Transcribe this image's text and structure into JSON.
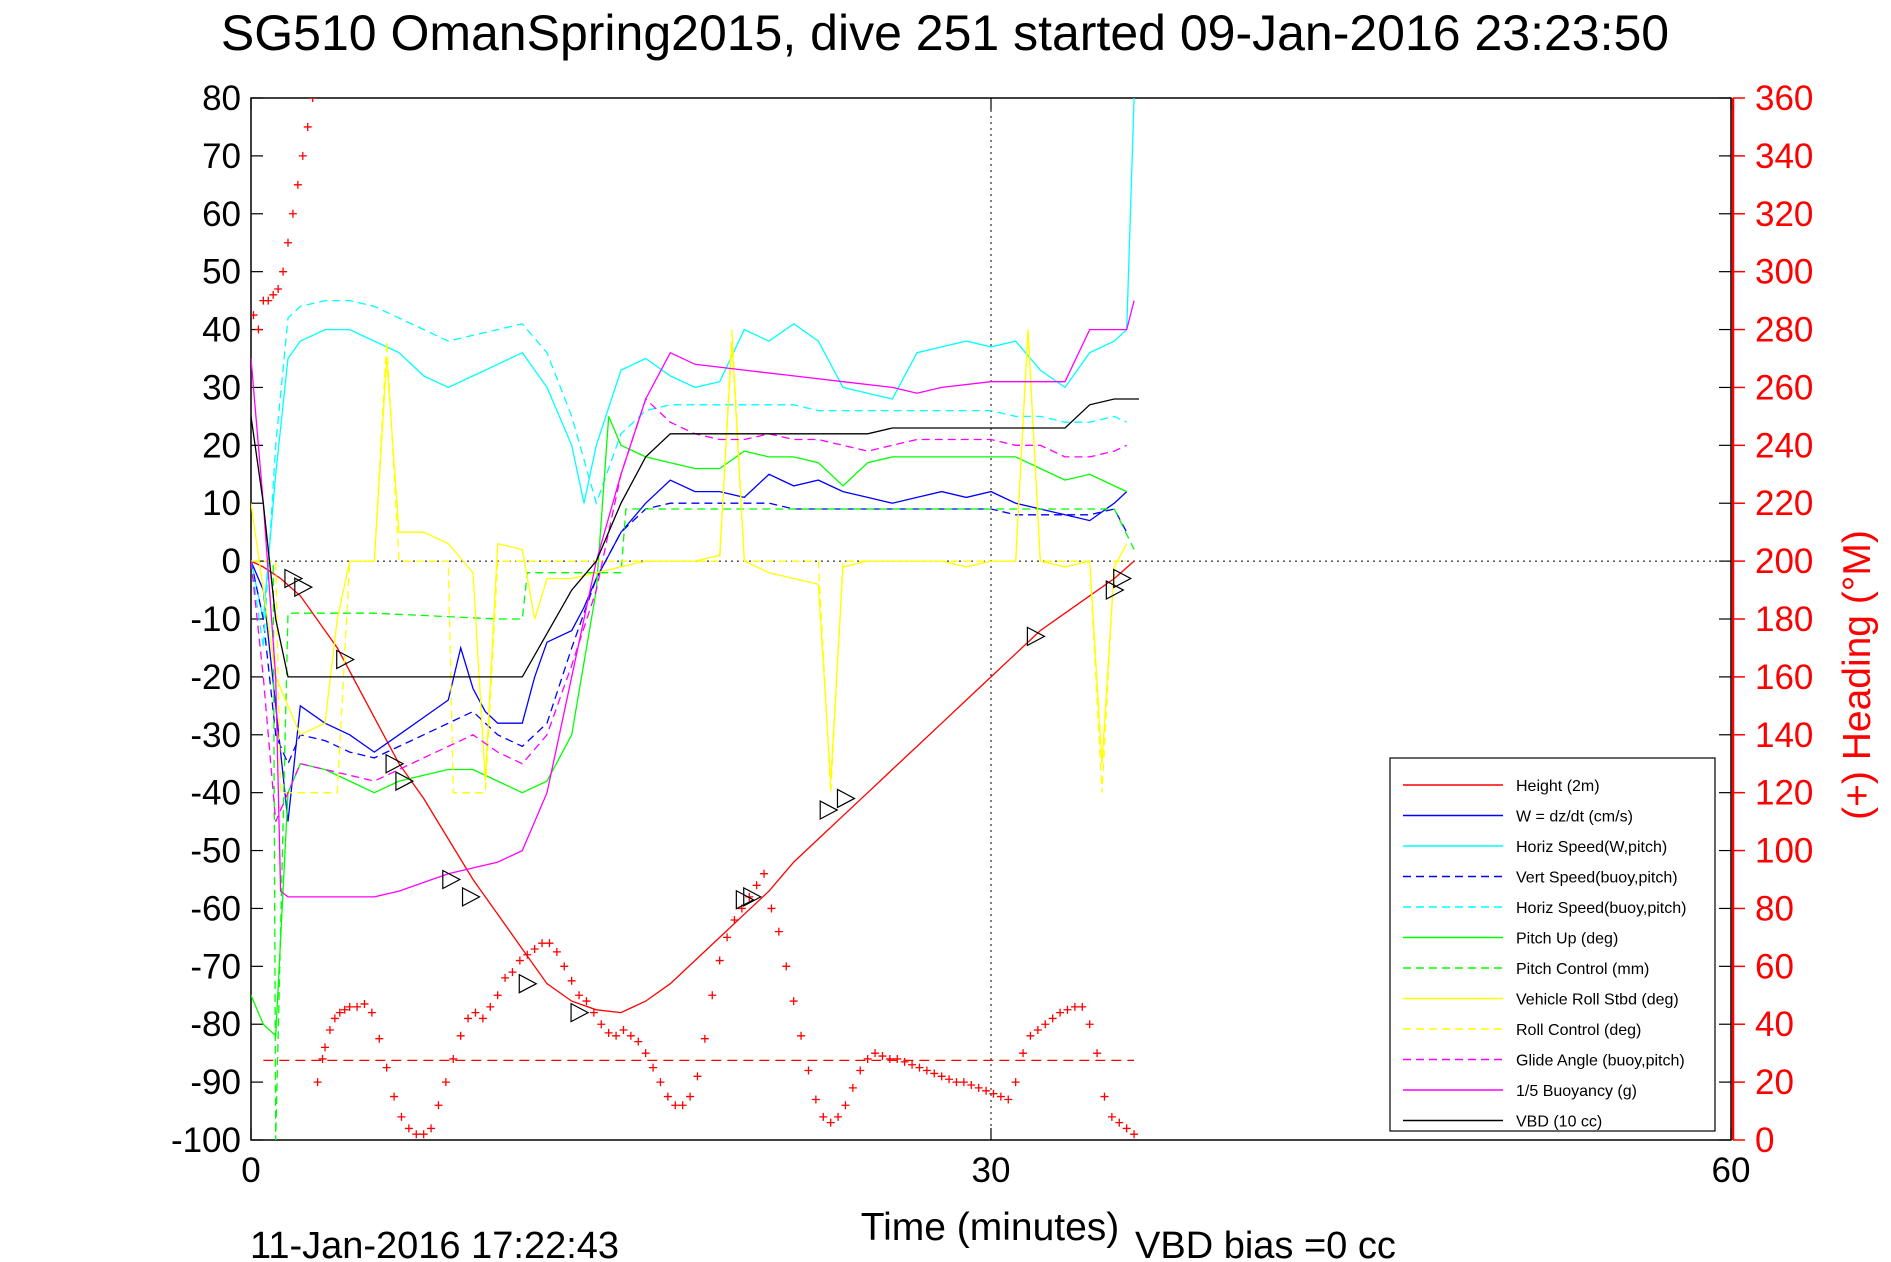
{
  "chart_data": {
    "type": "line",
    "title": "SG510 OmanSpring2015, dive 251 started 09-Jan-2016 23:23:50",
    "xlabel": "Time (minutes)",
    "ylabel": "",
    "y2label": "(+) Heading (°M)",
    "xlim": [
      0,
      60
    ],
    "ylim": [
      -100,
      80
    ],
    "y2lim": [
      0,
      360
    ],
    "xticks": [
      0,
      30,
      60
    ],
    "yticks": [
      80,
      70,
      60,
      50,
      40,
      30,
      20,
      10,
      0,
      -10,
      -20,
      -30,
      -40,
      -50,
      -60,
      -70,
      -80,
      -90,
      -100
    ],
    "y2ticks": [
      360,
      340,
      320,
      300,
      280,
      260,
      240,
      220,
      200,
      180,
      160,
      140,
      120,
      100,
      80,
      60,
      40,
      20,
      0
    ],
    "grid": "dotted at x=30 and y=0",
    "legend_position": "bottom-right",
    "footer_date": "11-Jan-2016 17:22:43",
    "footer_note": "VBD bias =0 cc",
    "series": [
      {
        "name": "Height (2m)",
        "color": "#ff0000",
        "dash": "solid",
        "x": [
          0,
          0.5,
          1.2,
          2,
          3.5,
          5,
          6,
          7,
          8,
          9,
          10,
          11,
          12,
          13,
          14,
          15,
          16,
          17,
          18,
          19,
          20,
          21,
          22,
          23,
          24,
          25,
          26,
          27,
          28,
          29,
          30,
          31,
          32,
          33,
          34,
          35,
          35.8
        ],
        "y": [
          0,
          -1,
          -3,
          -6,
          -15,
          -27,
          -35,
          -41,
          -48,
          -55,
          -61,
          -67,
          -73,
          -76,
          -77.5,
          -78,
          -76,
          -73,
          -69,
          -65,
          -61,
          -57,
          -52,
          -48,
          -44,
          -40,
          -36,
          -32,
          -28,
          -24,
          -20,
          -16,
          -12,
          -9,
          -6,
          -3,
          0
        ]
      },
      {
        "name": "W = dz/dt (cm/s)",
        "color": "#0000ff",
        "dash": "solid",
        "x": [
          0,
          0.5,
          1,
          1.5,
          2,
          3,
          4,
          5,
          6,
          7,
          8,
          8.5,
          9,
          9.5,
          10,
          11,
          11.5,
          12,
          13,
          13.5,
          14,
          15,
          16,
          17,
          18,
          19,
          20,
          21,
          22,
          23,
          24,
          25,
          26,
          27,
          28,
          29,
          30,
          31,
          32,
          33,
          34,
          35,
          35.5
        ],
        "y": [
          0,
          -5,
          -25,
          -45,
          -25,
          -28,
          -30,
          -33,
          -30,
          -27,
          -24,
          -15,
          -22,
          -26,
          -28,
          -28,
          -20,
          -14,
          -12,
          -8,
          -3,
          5,
          10,
          14,
          12,
          12,
          11,
          15,
          13,
          14,
          12,
          11,
          10,
          11,
          12,
          11,
          12,
          10,
          9,
          8,
          7,
          10,
          12
        ]
      },
      {
        "name": "Horiz Speed(W,pitch)",
        "color": "#00ffff",
        "dash": "solid",
        "x": [
          0,
          0.5,
          1,
          1.5,
          2,
          3,
          4,
          5,
          6,
          7,
          8,
          9,
          10,
          11,
          12,
          13,
          13.5,
          14,
          15,
          16,
          17,
          18,
          19,
          20,
          21,
          22,
          23,
          24,
          25,
          26,
          27,
          28,
          29,
          30,
          31,
          32,
          33,
          34,
          35,
          35.5,
          35.8
        ],
        "y": [
          0,
          -10,
          15,
          35,
          38,
          40,
          40,
          38,
          36,
          32,
          30,
          32,
          34,
          36,
          30,
          20,
          10,
          20,
          33,
          35,
          32,
          30,
          31,
          40,
          38,
          41,
          38,
          30,
          29,
          28,
          36,
          37,
          38,
          37,
          38,
          33,
          30,
          36,
          38,
          40,
          80
        ]
      },
      {
        "name": "Vert Speed(buoy,pitch)",
        "color": "#0000ff",
        "dash": "dashed",
        "x": [
          0,
          0.5,
          1,
          1.5,
          2,
          3,
          4,
          5,
          6,
          7,
          8,
          9,
          10,
          11,
          12,
          13,
          14,
          15,
          16,
          17,
          18,
          19,
          20,
          21,
          22,
          23,
          24,
          25,
          26,
          27,
          28,
          29,
          30,
          31,
          32,
          33,
          34,
          35,
          35.5
        ],
        "y": [
          0,
          -10,
          -30,
          -35,
          -30,
          -31,
          -33,
          -34,
          -32,
          -30,
          -28,
          -26,
          -30,
          -32,
          -28,
          -15,
          -3,
          5,
          9,
          10,
          10,
          10,
          10,
          10,
          9,
          9,
          9,
          9,
          9,
          9,
          9,
          9,
          9,
          8,
          8,
          8,
          8,
          9,
          5
        ]
      },
      {
        "name": "Horiz Speed(buoy,pitch)",
        "color": "#00ffff",
        "dash": "dashed",
        "x": [
          0,
          0.5,
          1,
          1.5,
          2,
          3,
          4,
          5,
          6,
          7,
          8,
          9,
          10,
          11,
          12,
          13,
          14,
          15,
          16,
          17,
          18,
          19,
          20,
          21,
          22,
          23,
          24,
          25,
          26,
          27,
          28,
          29,
          30,
          31,
          32,
          33,
          34,
          35,
          35.5
        ],
        "y": [
          0,
          -15,
          20,
          42,
          44,
          45,
          45,
          44,
          42,
          40,
          38,
          39,
          40,
          41,
          36,
          25,
          10,
          22,
          26,
          27,
          27,
          27,
          27,
          27,
          27,
          26,
          26,
          26,
          26,
          26,
          26,
          26,
          26,
          25,
          25,
          24,
          24,
          25,
          24
        ]
      },
      {
        "name": "Pitch Up (deg)",
        "color": "#00ff00",
        "dash": "solid",
        "x": [
          0,
          0.5,
          1,
          1.5,
          2,
          3,
          4,
          5,
          6,
          7,
          8,
          9,
          10,
          11,
          12,
          13,
          14,
          14.5,
          15,
          16,
          17,
          18,
          19,
          20,
          21,
          22,
          23,
          24,
          25,
          26,
          27,
          28,
          29,
          30,
          31,
          32,
          33,
          34,
          35,
          35.5
        ],
        "y": [
          -75,
          -80,
          -82,
          -40,
          -35,
          -36,
          -38,
          -40,
          -38,
          -37,
          -36,
          -36,
          -38,
          -40,
          -38,
          -30,
          -5,
          25,
          20,
          18,
          17,
          16,
          16,
          19,
          18,
          18,
          17,
          13,
          17,
          18,
          18,
          18,
          18,
          18,
          18,
          16,
          14,
          15,
          13,
          12
        ]
      },
      {
        "name": "Pitch Control (mm)",
        "color": "#00ff00",
        "dash": "dashed",
        "x": [
          0,
          0.9,
          1,
          1.5,
          5,
          10,
          11,
          11.2,
          14,
          15,
          15.2,
          20,
          25,
          30,
          35,
          35.8
        ],
        "y": [
          0,
          0,
          -100,
          -9,
          -9,
          -10,
          -10,
          -2,
          -2,
          -2,
          9,
          9,
          9,
          9,
          9,
          2
        ]
      },
      {
        "name": "Vehicle Roll Stbd (deg)",
        "color": "#ffff00",
        "dash": "solid",
        "x": [
          0,
          1,
          2,
          3,
          3.5,
          4,
          5,
          5.5,
          6,
          7,
          8,
          9,
          9.5,
          10,
          11,
          11.5,
          12,
          13,
          14,
          15,
          16,
          17,
          18,
          19,
          19.5,
          20,
          21,
          22,
          23,
          23.5,
          24,
          25,
          26,
          27,
          28,
          29,
          30,
          31,
          31.5,
          32,
          33,
          34,
          34.5,
          35,
          35.5
        ],
        "y": [
          10,
          -20,
          -30,
          -28,
          -10,
          0,
          0,
          35,
          5,
          5,
          3,
          -2,
          -38,
          3,
          2,
          -10,
          -3,
          -3,
          -2,
          -1,
          0,
          0,
          0,
          1,
          38,
          0,
          -2,
          -3,
          -4,
          -38,
          -1,
          0,
          0,
          0,
          0,
          -1,
          0,
          0,
          40,
          0,
          -1,
          0,
          -35,
          -1,
          3
        ]
      },
      {
        "name": "Roll Control (deg)",
        "color": "#ffff00",
        "dash": "dashed",
        "x": [
          0,
          1,
          1.2,
          2,
          3,
          3.5,
          4,
          5,
          5.5,
          6,
          7,
          8,
          8.2,
          9,
          9.5,
          10,
          11,
          12,
          13,
          14,
          15,
          19,
          19.5,
          20,
          23,
          23.5,
          24,
          31,
          31.5,
          32,
          34,
          34.5,
          35,
          35.5
        ],
        "y": [
          0,
          0,
          -40,
          -40,
          -40,
          -40,
          0,
          0,
          38,
          0,
          0,
          0,
          -40,
          -40,
          -40,
          0,
          0,
          0,
          0,
          0,
          0,
          0,
          40,
          0,
          0,
          -40,
          0,
          0,
          40,
          0,
          0,
          -40,
          0,
          0
        ]
      },
      {
        "name": "Glide Angle (buoy,pitch)",
        "color": "#ff00ff",
        "dash": "dashed",
        "x": [
          0,
          0.5,
          1,
          1.5,
          2,
          3,
          4,
          5,
          6,
          7,
          8,
          9,
          10,
          11,
          12,
          13,
          14,
          15,
          16,
          17,
          18,
          19,
          20,
          21,
          22,
          23,
          24,
          25,
          26,
          27,
          28,
          29,
          30,
          31,
          32,
          33,
          34,
          35,
          35.5
        ],
        "y": [
          0,
          -20,
          -45,
          -40,
          -35,
          -36,
          -37,
          -38,
          -36,
          -34,
          -32,
          -30,
          -33,
          -35,
          -30,
          -18,
          -5,
          15,
          28,
          24,
          22,
          21,
          21,
          22,
          21,
          21,
          20,
          19,
          20,
          21,
          21,
          21,
          21,
          20,
          20,
          18,
          18,
          19,
          20
        ]
      },
      {
        "name": "1/5 Buoyancy (g)",
        "color": "#ff00ff",
        "dash": "solid",
        "x": [
          0,
          0.5,
          1,
          1.2,
          1.5,
          3,
          5,
          6,
          8,
          10,
          11,
          12,
          13,
          14,
          15,
          16,
          17,
          18,
          20,
          22,
          24,
          26,
          27,
          28,
          30,
          32,
          33,
          34,
          35,
          35.5,
          35.8
        ],
        "y": [
          35,
          10,
          -20,
          -57,
          -58,
          -58,
          -58,
          -57,
          -54,
          -52,
          -50,
          -40,
          -20,
          0,
          15,
          28,
          36,
          34,
          33,
          32,
          31,
          30,
          29,
          30,
          31,
          31,
          31,
          40,
          40,
          40,
          45
        ]
      },
      {
        "name": "VBD (10 cc)",
        "color": "#000000",
        "dash": "solid",
        "x": [
          0,
          0.5,
          1,
          1.5,
          2,
          3,
          5,
          8,
          10,
          11,
          13,
          14,
          15,
          16,
          17,
          20,
          25,
          26,
          30,
          33,
          34,
          35,
          36
        ],
        "y": [
          25,
          10,
          -10,
          -20,
          -20,
          -20,
          -20,
          -20,
          -20,
          -20,
          -5,
          0,
          10,
          18,
          22,
          22,
          22,
          23,
          23,
          23,
          27,
          28,
          28
        ]
      }
    ],
    "heading_points": {
      "name": "(+) Heading",
      "color": "#ff0000",
      "x": [
        0.1,
        0.3,
        0.5,
        0.7,
        0.9,
        1.1,
        1.3,
        1.5,
        1.7,
        1.9,
        2.1,
        2.3,
        2.5,
        2.7,
        2.9,
        3,
        3.2,
        3.4,
        3.6,
        3.8,
        4,
        4.3,
        4.6,
        4.9,
        5.2,
        5.5,
        5.8,
        6.1,
        6.4,
        6.7,
        7,
        7.3,
        7.6,
        7.9,
        8.2,
        8.5,
        8.8,
        9.1,
        9.4,
        9.7,
        10,
        10.3,
        10.6,
        10.9,
        11.2,
        11.5,
        11.8,
        12.1,
        12.4,
        12.7,
        13,
        13.3,
        13.6,
        13.9,
        14.2,
        14.5,
        14.8,
        15.1,
        15.4,
        15.7,
        16,
        16.3,
        16.6,
        16.9,
        17.2,
        17.5,
        17.8,
        18.1,
        18.4,
        18.7,
        19,
        19.3,
        19.6,
        19.9,
        20.2,
        20.5,
        20.8,
        21.1,
        21.4,
        21.7,
        22,
        22.3,
        22.6,
        22.9,
        23.2,
        23.5,
        23.8,
        24.1,
        24.4,
        24.7,
        25,
        25.3,
        25.6,
        25.9,
        26.2,
        26.5,
        26.8,
        27.1,
        27.4,
        27.7,
        28,
        28.3,
        28.6,
        28.9,
        29.2,
        29.5,
        29.8,
        30.1,
        30.4,
        30.7,
        31,
        31.3,
        31.6,
        31.9,
        32.2,
        32.5,
        32.8,
        33.1,
        33.4,
        33.7,
        34,
        34.3,
        34.6,
        34.9,
        35.2,
        35.5,
        35.8
      ],
      "y": [
        285,
        280,
        290,
        290,
        292,
        294,
        300,
        310,
        320,
        330,
        340,
        350,
        360,
        20,
        28,
        32,
        38,
        42,
        44,
        45,
        46,
        46,
        47,
        44,
        35,
        25,
        15,
        8,
        4,
        2,
        2,
        4,
        12,
        20,
        28,
        36,
        42,
        44,
        42,
        46,
        50,
        56,
        58,
        62,
        64,
        66,
        68,
        68,
        65,
        60,
        55,
        50,
        48,
        44,
        40,
        37,
        36,
        38,
        36,
        34,
        30,
        25,
        20,
        15,
        12,
        12,
        15,
        22,
        35,
        50,
        62,
        70,
        76,
        80,
        84,
        88,
        92,
        80,
        72,
        60,
        48,
        36,
        24,
        14,
        8,
        6,
        8,
        12,
        18,
        24,
        28,
        30,
        29,
        28,
        28,
        27,
        26,
        25,
        24,
        23,
        22,
        21,
        20,
        20,
        19,
        18,
        17,
        16,
        15,
        14,
        20,
        30,
        36,
        38,
        40,
        42,
        44,
        45,
        46,
        46,
        40,
        30,
        15,
        8,
        6,
        4,
        2
      ]
    },
    "heading_ref": {
      "color": "#ff0000",
      "y2": 27.5,
      "dash": "dashed"
    },
    "markers": {
      "shape": "triangle",
      "x": [
        1.7,
        2.1,
        3.8,
        5.8,
        6.2,
        8.1,
        8.9,
        11.2,
        13.3,
        20,
        20.3,
        23.4,
        24.1,
        31.8,
        35,
        35.3
      ],
      "y": [
        -3,
        -4.5,
        -17,
        -35,
        -38,
        -55,
        -58,
        -73,
        -78,
        -58.5,
        -58,
        -43,
        -41,
        -13,
        -5,
        -3
      ]
    }
  }
}
